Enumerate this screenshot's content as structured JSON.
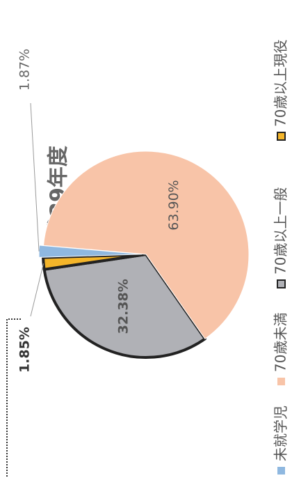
{
  "chart_data": {
    "type": "pie",
    "title": "平成29年度",
    "categories": [
      "未就学児",
      "70歳未満",
      "70歳以上一般",
      "70歳以上現役"
    ],
    "values": [
      1.87,
      63.9,
      32.38,
      1.85
    ],
    "value_labels": [
      "1.87%",
      "63.90%",
      "32.38%",
      "1.85%"
    ],
    "colors": [
      "#8fb8e0",
      "#f8c4a8",
      "#b0b1b6",
      "#f4b52a"
    ],
    "borders": [
      "none",
      "none",
      "#222222",
      "#222222"
    ]
  }
}
